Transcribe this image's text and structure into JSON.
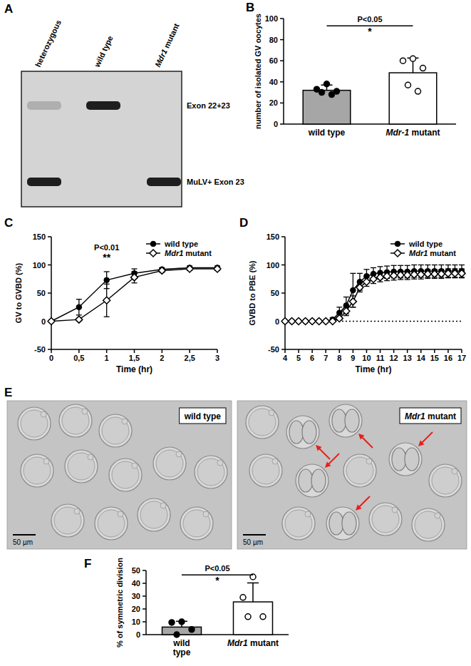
{
  "chart_data": [
    {
      "panel": "B",
      "type": "bar",
      "y_label": "number of isolated GV oocytes",
      "categories": [
        "wild type",
        "Mdr-1 mutant"
      ],
      "values": [
        32,
        48.6
      ],
      "errors": [
        5,
        14
      ],
      "points": [
        [
          38,
          33,
          31,
          30,
          28
        ],
        [
          62,
          60,
          53,
          37,
          31
        ]
      ],
      "colors": [
        "#a6a6a6",
        "#ffffff"
      ],
      "ylim": [
        0,
        100
      ],
      "yticks": [
        0,
        20,
        40,
        60,
        80,
        100
      ],
      "annotations": [
        "P<0.05",
        "*"
      ]
    },
    {
      "panel": "C",
      "type": "line",
      "x_label": "Time (hr)",
      "y_label": "GV to GVBD (%)",
      "x": [
        0,
        0.5,
        1,
        1.5,
        2,
        2.5,
        3
      ],
      "series": [
        {
          "name": "wild type",
          "color": "#000000",
          "marker": "circle",
          "values": [
            0,
            25,
            73,
            85,
            92,
            95,
            95
          ],
          "errors": [
            0,
            14,
            15,
            8,
            3,
            3,
            3
          ]
        },
        {
          "name": "Mdr1 mutant",
          "color": "#000000",
          "marker": "open-diamond",
          "values": [
            0,
            3,
            37,
            78,
            90,
            93,
            93
          ],
          "errors": [
            0,
            2,
            29,
            10,
            3,
            3,
            3
          ]
        }
      ],
      "xlim": [
        0,
        3
      ],
      "xticks": [
        0,
        {
          "value": 0.5,
          "label": "0,5"
        },
        1,
        {
          "value": 1.5,
          "label": "1,5"
        },
        2,
        {
          "value": 2.5,
          "label": "2,5"
        },
        3
      ],
      "ylim": [
        -50,
        150
      ],
      "yticks": [
        -50,
        0,
        50,
        100,
        150
      ],
      "legend": "top-right",
      "annotations": [
        {
          "text": "P<0.01",
          "x": 1
        },
        {
          "text": "**",
          "x": 1
        }
      ]
    },
    {
      "panel": "D",
      "type": "line",
      "x_label": "Time (hr)",
      "y_label": "GVBD to PBE (%)",
      "x": [
        4,
        4.5,
        5,
        5.5,
        6,
        6.5,
        7,
        7.5,
        8,
        8.5,
        9,
        9.5,
        10,
        10.5,
        11,
        11.5,
        12,
        12.5,
        13,
        13.5,
        14,
        14.5,
        15,
        15.5,
        16,
        16.5,
        17
      ],
      "series": [
        {
          "name": "wild type",
          "color": "#000000",
          "marker": "circle",
          "values": [
            0,
            0,
            0,
            0,
            0,
            0,
            0,
            3,
            15,
            28,
            55,
            70,
            80,
            84,
            86,
            87,
            88,
            88,
            88,
            89,
            89,
            89,
            89,
            89,
            89,
            89,
            89
          ],
          "errors": [
            0,
            0,
            0,
            0,
            0,
            0,
            0,
            3,
            10,
            15,
            30,
            15,
            12,
            11,
            11,
            11,
            11,
            11,
            11,
            11,
            11,
            11,
            11,
            11,
            11,
            11,
            11
          ]
        },
        {
          "name": "Mdr1 mutant",
          "color": "#000000",
          "marker": "open-diamond",
          "values": [
            0,
            0,
            0,
            0,
            0,
            0,
            0,
            0,
            5,
            18,
            35,
            60,
            70,
            75,
            78,
            80,
            81,
            82,
            82,
            83,
            83,
            84,
            84,
            84,
            85,
            85,
            85
          ],
          "errors": [
            0,
            0,
            0,
            0,
            0,
            0,
            0,
            0,
            3,
            8,
            10,
            8,
            8,
            8,
            8,
            8,
            8,
            8,
            8,
            8,
            8,
            8,
            8,
            8,
            8,
            8,
            8
          ]
        }
      ],
      "xlim": [
        4,
        17
      ],
      "xticks": [
        4,
        5,
        6,
        7,
        8,
        9,
        10,
        11,
        12,
        13,
        14,
        15,
        16,
        17
      ],
      "ylim": [
        -50,
        150
      ],
      "yticks": [
        -50,
        0,
        50,
        100,
        150
      ],
      "reference_line": 0,
      "legend": "top-right"
    },
    {
      "panel": "F",
      "type": "bar",
      "y_label": "% of symmetric division",
      "categories": [
        "wild type",
        "Mdr1 mutant"
      ],
      "values": [
        5.9,
        25.5
      ],
      "errors": [
        4.5,
        14.8
      ],
      "points": [
        [
          10,
          9.5,
          4,
          0
        ],
        [
          45,
          29,
          14,
          14
        ]
      ],
      "colors": [
        "#a6a6a6",
        "#ffffff"
      ],
      "ylim": [
        0,
        50
      ],
      "yticks": [
        0,
        10,
        20,
        30,
        40,
        50
      ],
      "annotations": [
        "P<0.05",
        "*"
      ]
    }
  ],
  "gel": {
    "panel": "A",
    "lanes": [
      "heterozygous",
      "wild type",
      "Mdr1 mutant"
    ],
    "bands": [
      "Exon 22+23",
      "MuLV+ Exon 23"
    ]
  },
  "micrographs": {
    "panel": "E",
    "images": [
      {
        "label": "wild type",
        "scale_bar": "50 µm"
      },
      {
        "label": "Mdr1 mutant",
        "scale_bar": "50 µm"
      }
    ]
  }
}
